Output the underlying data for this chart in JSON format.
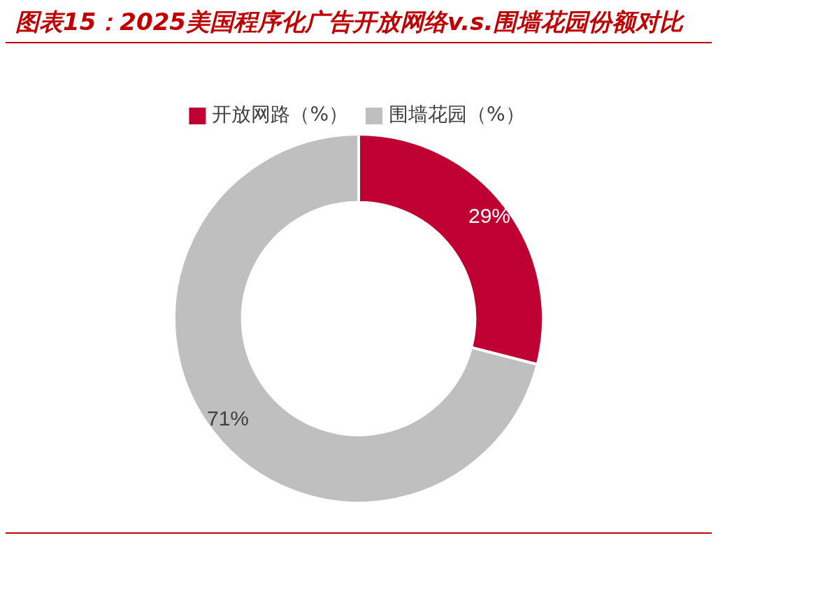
{
  "chart_data": {
    "type": "donut",
    "title": "图表15：2025美国程序化广告开放网络v.s.围墙花园份额对比",
    "categories": [
      "开放网路（%）",
      "围墙花园（%）"
    ],
    "values": [
      29,
      71
    ],
    "colors": [
      "#be0032",
      "#bfbfbf"
    ],
    "value_labels": [
      "29%",
      "71%"
    ],
    "legend": "top"
  }
}
